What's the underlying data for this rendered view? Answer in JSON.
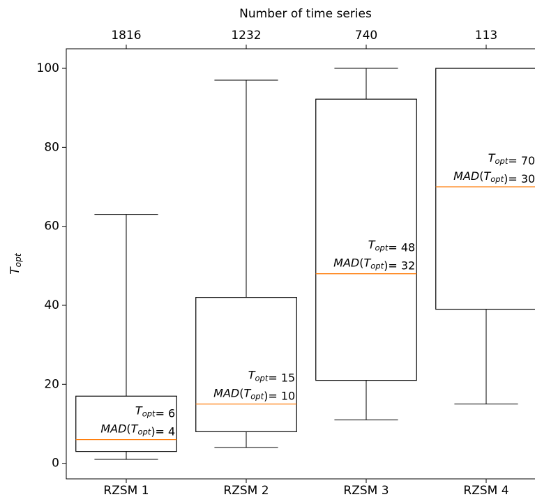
{
  "chart_data": {
    "type": "box",
    "title": "Number of time series",
    "ylabel": "T_{opt}",
    "categories": [
      "RZSM 1",
      "RZSM 2",
      "RZSM 3",
      "RZSM 4"
    ],
    "top_ticks": [
      1816,
      1232,
      740,
      113
    ],
    "boxes": [
      {
        "whisker_low": 1,
        "q1": 3,
        "median": 6,
        "q3": 17,
        "whisker_high": 63
      },
      {
        "whisker_low": 4,
        "q1": 8,
        "median": 15,
        "q3": 42,
        "whisker_high": 97
      },
      {
        "whisker_low": 11,
        "q1": 21,
        "median": 48,
        "q3": 92.2,
        "whisker_high": 100
      },
      {
        "whisker_low": 15,
        "q1": 39,
        "median": 70,
        "q3": 100,
        "whisker_high": 100
      }
    ],
    "annotations": [
      [
        "T_{opt}= 6",
        "MAD(T_{opt})= 4"
      ],
      [
        "T_{opt}= 15",
        "MAD(T_{opt})= 10"
      ],
      [
        "T_{opt}= 48",
        "MAD(T_{opt})= 32"
      ],
      [
        "T_{opt}= 70",
        "MAD(T_{opt})= 30"
      ]
    ],
    "box_color": "#000000",
    "median_color": "#ff7f0e",
    "ylim": [
      -3.95,
      104.95
    ],
    "yticks": [
      0,
      20,
      40,
      60,
      80,
      100
    ]
  }
}
